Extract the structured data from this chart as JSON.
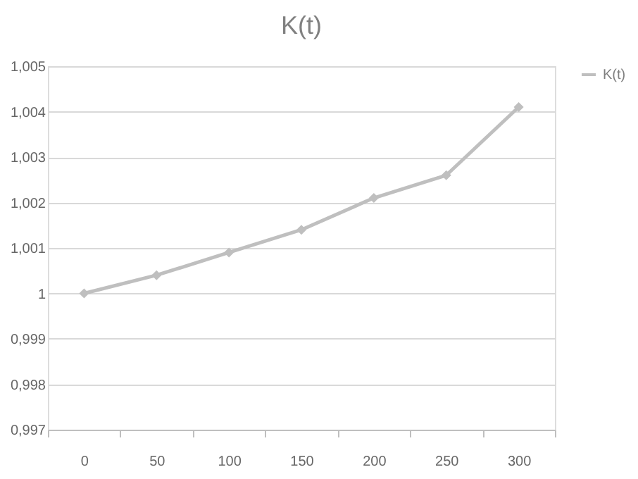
{
  "chart_data": {
    "type": "line",
    "title": "K(t)",
    "categories": [
      "0",
      "50",
      "100",
      "150",
      "200",
      "250",
      "300"
    ],
    "series": [
      {
        "name": "K(t)",
        "color": "#bfbfbf",
        "values": [
          1.0,
          1.0004,
          1.0009,
          1.0014,
          1.0021,
          1.0026,
          1.0041
        ]
      }
    ],
    "ylim": [
      0.997,
      1.005
    ],
    "yticks": [
      {
        "value": 0.997,
        "label": "0,997"
      },
      {
        "value": 0.998,
        "label": "0,998"
      },
      {
        "value": 0.999,
        "label": "0,999"
      },
      1,
      {
        "value": 1.001,
        "label": "1,001"
      },
      {
        "value": 1.002,
        "label": "1,002"
      },
      {
        "value": 1.003,
        "label": "1,003"
      },
      {
        "value": 1.004,
        "label": "1,004"
      },
      {
        "value": 1.005,
        "label": "1,005"
      }
    ],
    "grid": "y",
    "legend": "right",
    "marker": "diamond",
    "line_style": "solid"
  }
}
